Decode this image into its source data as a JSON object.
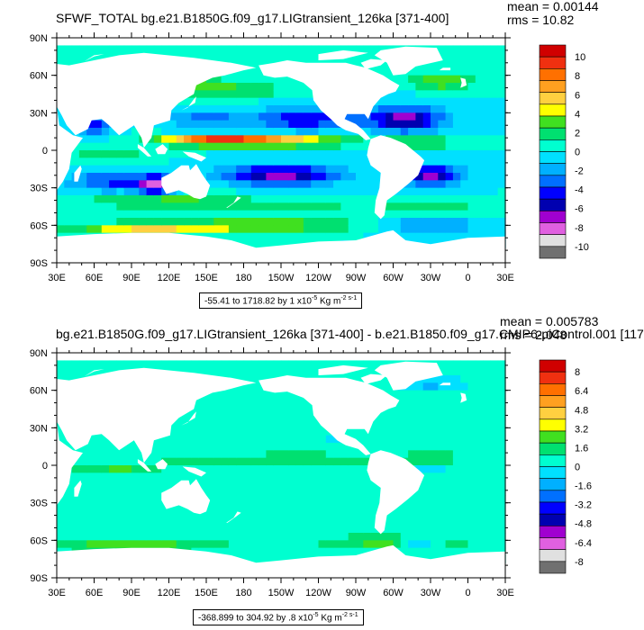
{
  "panels": [
    {
      "title": "SFWF_TOTAL bg.e21.B1850G.f09_g17.LIGtransient_126ka [371-400]",
      "mean": "mean = 0.00144",
      "rms": "rms = 10.82",
      "range_label": "-55.41 to 1718.82 by 1 x10",
      "range_exp": "-5",
      "unit": " Kg m",
      "unit_exp": "-2 s-1",
      "colorbar_labels": [
        "10",
        "8",
        "6",
        "4",
        "2",
        "0",
        "-2",
        "-4",
        "-6",
        "-8",
        "-10"
      ]
    },
    {
      "title": "bg.e21.B1850G.f09_g17.LIGtransient_126ka [371-400] - b.e21.B1850.f09_g17.CMIP6-piControl.001 [117",
      "mean": "mean = 0.005783",
      "rms": "rms = 2.048",
      "range_label": "-368.899 to 304.92 by .8 x10",
      "range_exp": "-5",
      "unit": " Kg m",
      "unit_exp": "-2 s-1",
      "colorbar_labels": [
        "8",
        "6.4",
        "4.8",
        "3.2",
        "1.6",
        "0",
        "-1.6",
        "-3.2",
        "-4.8",
        "-6.4",
        "-8"
      ]
    }
  ],
  "lon_labels": [
    "30E",
    "60E",
    "90E",
    "120E",
    "150E",
    "180",
    "150W",
    "120W",
    "90W",
    "60W",
    "30W",
    "0",
    "30E"
  ],
  "lat_labels": [
    "90N",
    "60N",
    "30N",
    "0",
    "30S",
    "60S",
    "90S"
  ],
  "colormap": [
    "#d00000",
    "#f03010",
    "#ff7000",
    "#ffa020",
    "#ffd040",
    "#ffff00",
    "#40e020",
    "#00e070",
    "#00ffd0",
    "#00e0ff",
    "#00b0ff",
    "#0070ff",
    "#0000ff",
    "#0000b0",
    "#a000d0",
    "#e060e0",
    "#e0e0e0",
    "#707070"
  ]
}
